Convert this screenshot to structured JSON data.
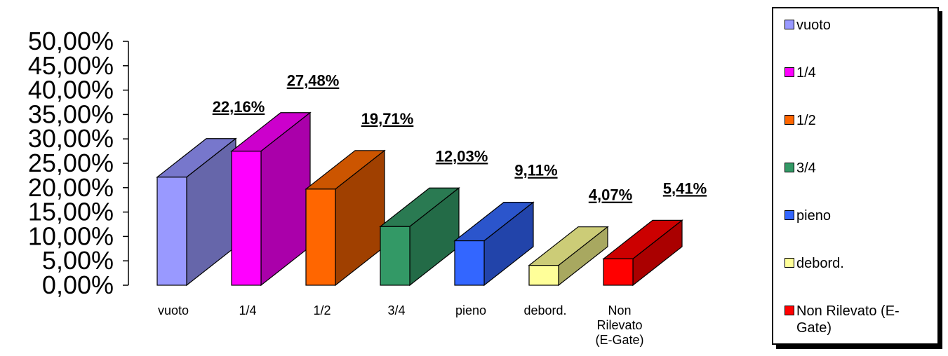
{
  "chart_data": {
    "type": "bar",
    "categories": [
      "vuoto",
      "1/4",
      "1/2",
      "3/4",
      "pieno",
      "debord.",
      "Non Rilevato (E-Gate)"
    ],
    "category_tick_lines": [
      [
        "vuoto"
      ],
      [
        "1/4"
      ],
      [
        "1/2"
      ],
      [
        "3/4"
      ],
      [
        "pieno"
      ],
      [
        "debord."
      ],
      [
        "Non",
        "Rilevato",
        "(E-Gate)"
      ]
    ],
    "values": [
      22.16,
      27.48,
      19.71,
      12.03,
      9.11,
      4.07,
      5.41
    ],
    "data_labels": [
      "22,16%",
      "27,48%",
      "19,71%",
      "12,03%",
      "9,11%",
      "4,07%",
      "5,41%"
    ],
    "ylim": [
      0,
      50
    ],
    "yticks": [
      "0,00%",
      "5,00%",
      "10,00%",
      "15,00%",
      "20,00%",
      "25,00%",
      "30,00%",
      "35,00%",
      "40,00%",
      "45,00%",
      "50,00%"
    ],
    "title": "",
    "xlabel": "",
    "ylabel": "",
    "legend_position": "right",
    "grid": false,
    "bar_style": "3d",
    "colors": [
      {
        "front": "#9999FF",
        "side": "#6666AA",
        "top": "#7777CC"
      },
      {
        "front": "#FF00FF",
        "side": "#AA00AA",
        "top": "#CC00CC"
      },
      {
        "front": "#FF6600",
        "side": "#A04000",
        "top": "#CC5500"
      },
      {
        "front": "#339966",
        "side": "#236B47",
        "top": "#2A7A52"
      },
      {
        "front": "#3366FF",
        "side": "#2244AA",
        "top": "#2B55CC"
      },
      {
        "front": "#FFFF99",
        "side": "#A8A860",
        "top": "#CCCC77"
      },
      {
        "front": "#FF0000",
        "side": "#AA0000",
        "top": "#CC0000"
      }
    ]
  },
  "legend": {
    "items": [
      "vuoto",
      "1/4",
      "1/2",
      "3/4",
      "pieno",
      "debord.",
      "Non Rilevato (E-Gate)"
    ]
  }
}
